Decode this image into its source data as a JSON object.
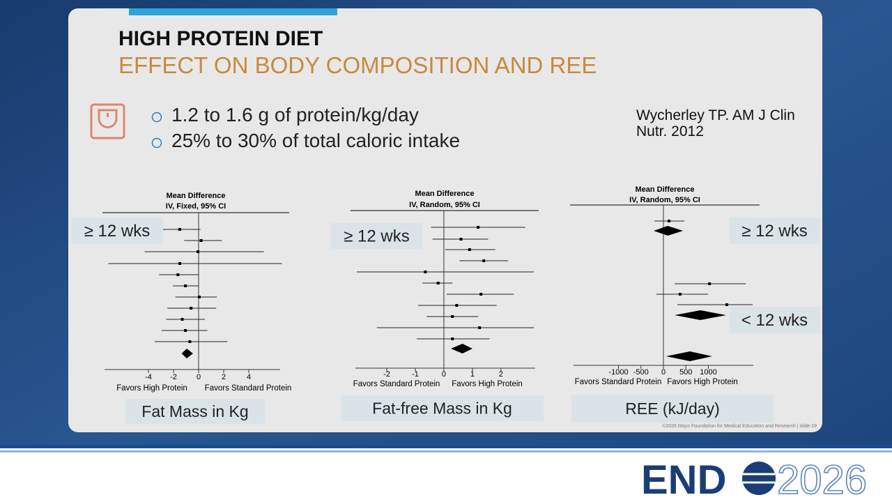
{
  "title": "HIGH PROTEIN DIET",
  "subtitle": "EFFECT ON BODY COMPOSITION AND REE",
  "bullets": [
    "1.2 to 1.6 g of protein/kg/day",
    "25% to 30% of total caloric intake"
  ],
  "citation": [
    "Wycherley TP. AM J Clin",
    "Nutr. 2012"
  ],
  "footer": "©2026 Mayo Foundation for Medical Education and Research  |  slide-19",
  "logo": {
    "left": "END",
    "right": "2026"
  },
  "chart_data": [
    {
      "type": "forest",
      "header": [
        "Mean Difference",
        "IV, Fixed, 95% CI"
      ],
      "xlim": [
        -7.5,
        6.5
      ],
      "xticks": [
        -4,
        -2,
        0,
        2,
        4
      ],
      "xlabel_left": "Favors High Protein",
      "xlabel_right": "Favors Standard Protein",
      "caption": "Fat Mass in Kg",
      "annotations": [
        "≥ 12 wks"
      ],
      "rows": [
        {
          "kind": "point",
          "mean": -1.5,
          "lower": -3.05,
          "upper": 0.15
        },
        {
          "kind": "point",
          "mean": 0.2,
          "lower": -1.15,
          "upper": 1.85
        },
        {
          "kind": "point",
          "mean": -0.05,
          "lower": -4.3,
          "upper": 5.2
        },
        {
          "kind": "point",
          "mean": -1.5,
          "lower": -7.2,
          "upper": 6.65
        },
        {
          "kind": "point",
          "mean": -1.65,
          "lower": -3.15,
          "upper": 0
        },
        {
          "kind": "point",
          "mean": -1.05,
          "lower": -2.05,
          "upper": 0
        },
        {
          "kind": "point",
          "mean": 0.05,
          "lower": -1.85,
          "upper": 1.45
        },
        {
          "kind": "point",
          "mean": -0.6,
          "lower": -2.5,
          "upper": 1.4
        },
        {
          "kind": "point",
          "mean": -1.3,
          "lower": -2.6,
          "upper": 0.5
        },
        {
          "kind": "point",
          "mean": -1.05,
          "lower": -2.95,
          "upper": 0.7
        },
        {
          "kind": "point",
          "mean": -0.7,
          "lower": -3.5,
          "upper": 2.3
        },
        {
          "kind": "diamond",
          "mean": -0.95,
          "lower": -1.35,
          "upper": -0.45
        }
      ]
    },
    {
      "type": "forest",
      "header": [
        "Mean Difference",
        "IV, Random, 95% CI"
      ],
      "xlim": [
        -3.1,
        3.2
      ],
      "xticks": [
        -2,
        -1,
        0,
        1,
        2
      ],
      "xlabel_left": "Favors Standard Protein",
      "xlabel_right": "Favors High Protein",
      "caption": "Fat-free Mass in Kg",
      "annotations": [
        "≥ 12 wks"
      ],
      "rows": [
        {
          "kind": "point",
          "mean": 1.2,
          "lower": -0.45,
          "upper": 2.85
        },
        {
          "kind": "point",
          "mean": 0.6,
          "lower": -0.4,
          "upper": 1.55
        },
        {
          "kind": "point",
          "mean": 0.9,
          "lower": 0.05,
          "upper": 1.8
        },
        {
          "kind": "point",
          "mean": 1.4,
          "lower": 0.55,
          "upper": 2.25
        },
        {
          "kind": "point",
          "mean": -0.65,
          "lower": -3.05,
          "upper": 3.15
        },
        {
          "kind": "point",
          "mean": -0.2,
          "lower": -0.75,
          "upper": 0.3
        },
        {
          "kind": "point",
          "mean": 1.3,
          "lower": 0.1,
          "upper": 2.45
        },
        {
          "kind": "point",
          "mean": 0.45,
          "lower": -0.9,
          "upper": 1.85
        },
        {
          "kind": "point",
          "mean": 0.3,
          "lower": -0.6,
          "upper": 1.2
        },
        {
          "kind": "point",
          "mean": 1.25,
          "lower": -2.35,
          "upper": 3.15
        },
        {
          "kind": "point",
          "mean": 0.3,
          "lower": -0.95,
          "upper": 1.6
        },
        {
          "kind": "diamond",
          "mean": 0.65,
          "lower": 0.25,
          "upper": 1.0
        }
      ]
    },
    {
      "type": "forest",
      "header": [
        "Mean Difference",
        "IV, Random, 95% CI"
      ],
      "xlim": [
        -2000,
        2000
      ],
      "xticks": [
        -1000,
        -500,
        0,
        500,
        1000
      ],
      "xlabel_left": "Favors Standard Protein",
      "xlabel_right": "Favors High Protein",
      "caption": "REE (kJ/day)",
      "annotations": [
        "≥ 12 wks",
        "< 12 wks"
      ],
      "rows": [
        {
          "kind": "point",
          "mean": 125,
          "lower": -200,
          "upper": 465
        },
        {
          "kind": "diamond",
          "mean": 95,
          "lower": -215,
          "upper": 435
        },
        {
          "kind": "point",
          "mean": 1025,
          "lower": 250,
          "upper": 1830
        },
        {
          "kind": "point",
          "mean": 370,
          "lower": -155,
          "upper": 990
        },
        {
          "kind": "point",
          "mean": 1410,
          "lower": 310,
          "upper": 1985
        },
        {
          "kind": "diamond",
          "mean": 820,
          "lower": 250,
          "upper": 1395
        },
        {
          "kind": "diamond",
          "mean": 590,
          "lower": 60,
          "upper": 1085
        }
      ]
    }
  ]
}
